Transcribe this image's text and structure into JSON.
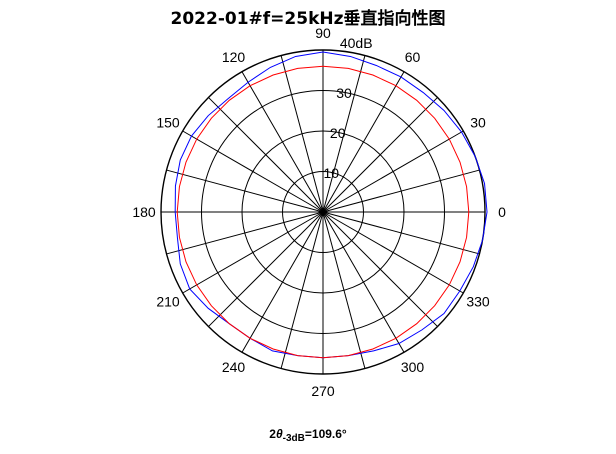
{
  "chart_data": {
    "type": "polar",
    "title": "2022-01#f=25kHz垂直指向性图",
    "radial_unit_label": "40dB",
    "radial_range": [
      0,
      40
    ],
    "radial_ticks": [
      10,
      20,
      30
    ],
    "angle_grid_step_deg": 15,
    "angle_tick_labels": [
      "0",
      "30",
      "60",
      "90",
      "120",
      "150",
      "180",
      "210",
      "240",
      "270",
      "300",
      "330"
    ],
    "angle_ticks_deg": [
      0,
      30,
      60,
      90,
      120,
      150,
      180,
      210,
      240,
      270,
      300,
      330
    ],
    "series": [
      {
        "color": "#0000ff",
        "angles_deg": [
          0,
          10,
          20,
          30,
          40,
          50,
          60,
          70,
          80,
          90,
          100,
          110,
          120,
          130,
          140,
          150,
          160,
          170,
          180,
          190,
          200,
          210,
          220,
          230,
          240,
          250,
          260,
          270,
          280,
          290,
          300,
          310,
          320,
          330,
          340,
          350
        ],
        "values": [
          40.5,
          40.5,
          40.0,
          39.5,
          39.0,
          38.5,
          38.5,
          38.5,
          39.0,
          39.5,
          39.0,
          38.0,
          37.0,
          36.5,
          37.0,
          37.5,
          37.5,
          37.0,
          36.5,
          36.5,
          37.5,
          38.0,
          37.0,
          36.0,
          36.0,
          36.5,
          36.0,
          36.0,
          36.0,
          36.5,
          37.5,
          38.0,
          39.0,
          39.0,
          39.5,
          40.0
        ]
      },
      {
        "color": "#ff0000",
        "angles_deg": [
          0,
          10,
          20,
          30,
          40,
          50,
          60,
          70,
          80,
          90,
          100,
          110,
          120,
          130,
          140,
          150,
          160,
          170,
          180,
          190,
          200,
          210,
          220,
          230,
          240,
          250,
          260,
          270,
          280,
          290,
          300,
          310,
          320,
          330,
          340,
          350
        ],
        "values": [
          36,
          36,
          36,
          36,
          36,
          36,
          36,
          36,
          36,
          36,
          36,
          36,
          36,
          36,
          36,
          36,
          36,
          36,
          36,
          36,
          36,
          36,
          36,
          36,
          36,
          36,
          36,
          36,
          36,
          36,
          36,
          36,
          36,
          36,
          36,
          36
        ]
      }
    ],
    "annotation": {
      "prefix": "2",
      "symbol": "θ",
      "subscript": "-3dB",
      "value": "=109.6°"
    }
  }
}
